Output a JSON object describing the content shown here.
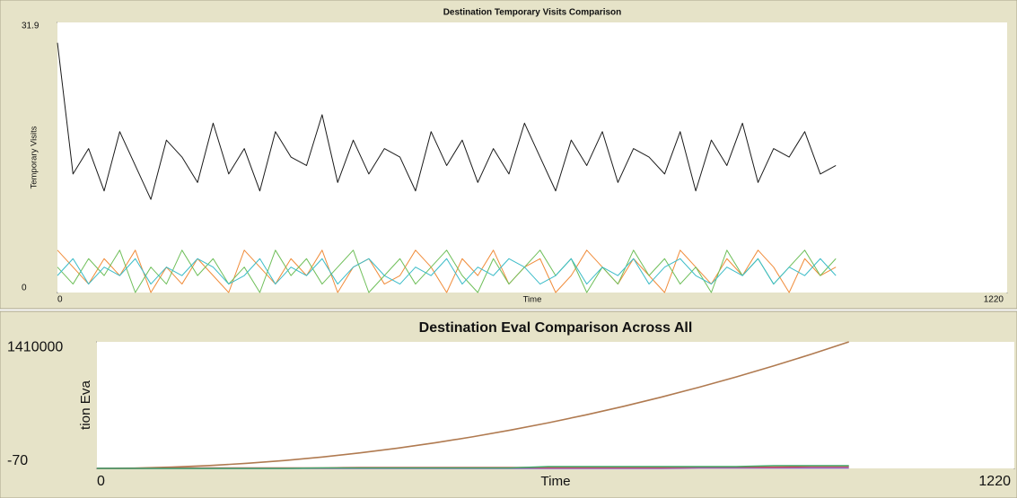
{
  "chart_data": [
    {
      "type": "line",
      "title": "Destination Temporary Visits Comparison",
      "x_label": "Time",
      "y_label": "Temporary Visits",
      "xlim": [
        0,
        1220
      ],
      "ylim": [
        0,
        31.9
      ],
      "xticks": [
        0,
        1220
      ],
      "yticks": [
        0,
        31.9
      ],
      "grid": false,
      "x": [
        0,
        20,
        40,
        60,
        80,
        100,
        120,
        140,
        160,
        180,
        200,
        220,
        240,
        260,
        280,
        300,
        320,
        340,
        360,
        380,
        400,
        420,
        440,
        460,
        480,
        500,
        520,
        540,
        560,
        580,
        600,
        620,
        640,
        660,
        680,
        700,
        720,
        740,
        760,
        780,
        800,
        820,
        840,
        860,
        880,
        900,
        920,
        940,
        960,
        980,
        1000
      ],
      "series": [
        {
          "color": "#1a1a1a",
          "values": [
            29.5,
            14,
            17,
            12,
            19,
            15,
            11,
            18,
            16,
            13,
            20,
            14,
            17,
            12,
            19,
            16,
            15,
            21,
            13,
            18,
            14,
            17,
            16,
            12,
            19,
            15,
            18,
            13,
            17,
            14,
            20,
            16,
            12,
            18,
            15,
            19,
            13,
            17,
            16,
            14,
            19,
            12,
            18,
            15,
            20,
            13,
            17,
            16,
            19,
            14,
            15
          ]
        },
        {
          "color": "#f08c3a",
          "values": [
            5,
            3,
            1,
            4,
            2,
            5,
            0,
            3,
            1,
            4,
            2,
            0,
            5,
            3,
            1,
            4,
            2,
            5,
            0,
            3,
            4,
            1,
            2,
            5,
            3,
            0,
            4,
            2,
            5,
            1,
            3,
            4,
            0,
            2,
            5,
            3,
            1,
            4,
            2,
            0,
            5,
            3,
            1,
            4,
            2,
            5,
            3,
            0,
            4,
            2,
            3
          ]
        },
        {
          "color": "#6fbf5a",
          "values": [
            3,
            1,
            4,
            2,
            5,
            0,
            3,
            1,
            5,
            2,
            4,
            1,
            3,
            0,
            5,
            2,
            4,
            1,
            3,
            5,
            0,
            2,
            4,
            1,
            3,
            5,
            2,
            0,
            4,
            1,
            3,
            5,
            2,
            4,
            0,
            3,
            1,
            5,
            2,
            4,
            1,
            3,
            0,
            5,
            2,
            4,
            1,
            3,
            5,
            2,
            4
          ]
        },
        {
          "color": "#3cbcc8",
          "values": [
            2,
            4,
            1,
            3,
            2,
            4,
            1,
            3,
            2,
            4,
            3,
            1,
            2,
            4,
            1,
            3,
            2,
            4,
            1,
            3,
            4,
            2,
            1,
            3,
            2,
            4,
            1,
            3,
            2,
            4,
            3,
            1,
            2,
            4,
            1,
            3,
            2,
            4,
            1,
            3,
            4,
            2,
            1,
            3,
            2,
            4,
            1,
            3,
            2,
            4,
            2
          ]
        }
      ]
    },
    {
      "type": "line",
      "title": "Destination Eval Comparison Across All",
      "x_label": "Time",
      "y_label": "tion Eva",
      "xlim": [
        0,
        1220
      ],
      "ylim": [
        -70,
        1410000
      ],
      "xticks": [
        0,
        1220
      ],
      "yticks": [
        -70,
        1410000
      ],
      "grid": false,
      "x": [
        0,
        50,
        100,
        150,
        200,
        250,
        300,
        350,
        400,
        450,
        500,
        550,
        600,
        650,
        700,
        750,
        800,
        850,
        900,
        950,
        1000
      ],
      "series": [
        {
          "color": "#b07a50",
          "values": [
            0,
            3500,
            14100,
            31700,
            56400,
            88100,
            126900,
            172700,
            225600,
            285500,
            352500,
            426500,
            507600,
            595700,
            690900,
            793100,
            902400,
            1018700,
            1142100,
            1272500,
            1410000
          ]
        },
        {
          "color": "#8a5cc8",
          "values": [
            0,
            0,
            0,
            0,
            0,
            0,
            0,
            0,
            0,
            0,
            0,
            0,
            0,
            0,
            0,
            0,
            5000,
            5000,
            5000,
            5000,
            5000
          ]
        },
        {
          "color": "#d64f4f",
          "values": [
            0,
            0,
            5000,
            5000,
            5000,
            5000,
            5000,
            10000,
            10000,
            10000,
            10000,
            10000,
            10000,
            10000,
            10000,
            10000,
            15000,
            15000,
            15000,
            20000,
            20000
          ]
        },
        {
          "color": "#3fa86a",
          "values": [
            0,
            0,
            0,
            0,
            0,
            0,
            5000,
            5000,
            5000,
            5000,
            5000,
            5000,
            20000,
            20000,
            20000,
            20000,
            20000,
            20000,
            30000,
            30000,
            30000
          ]
        }
      ]
    }
  ]
}
